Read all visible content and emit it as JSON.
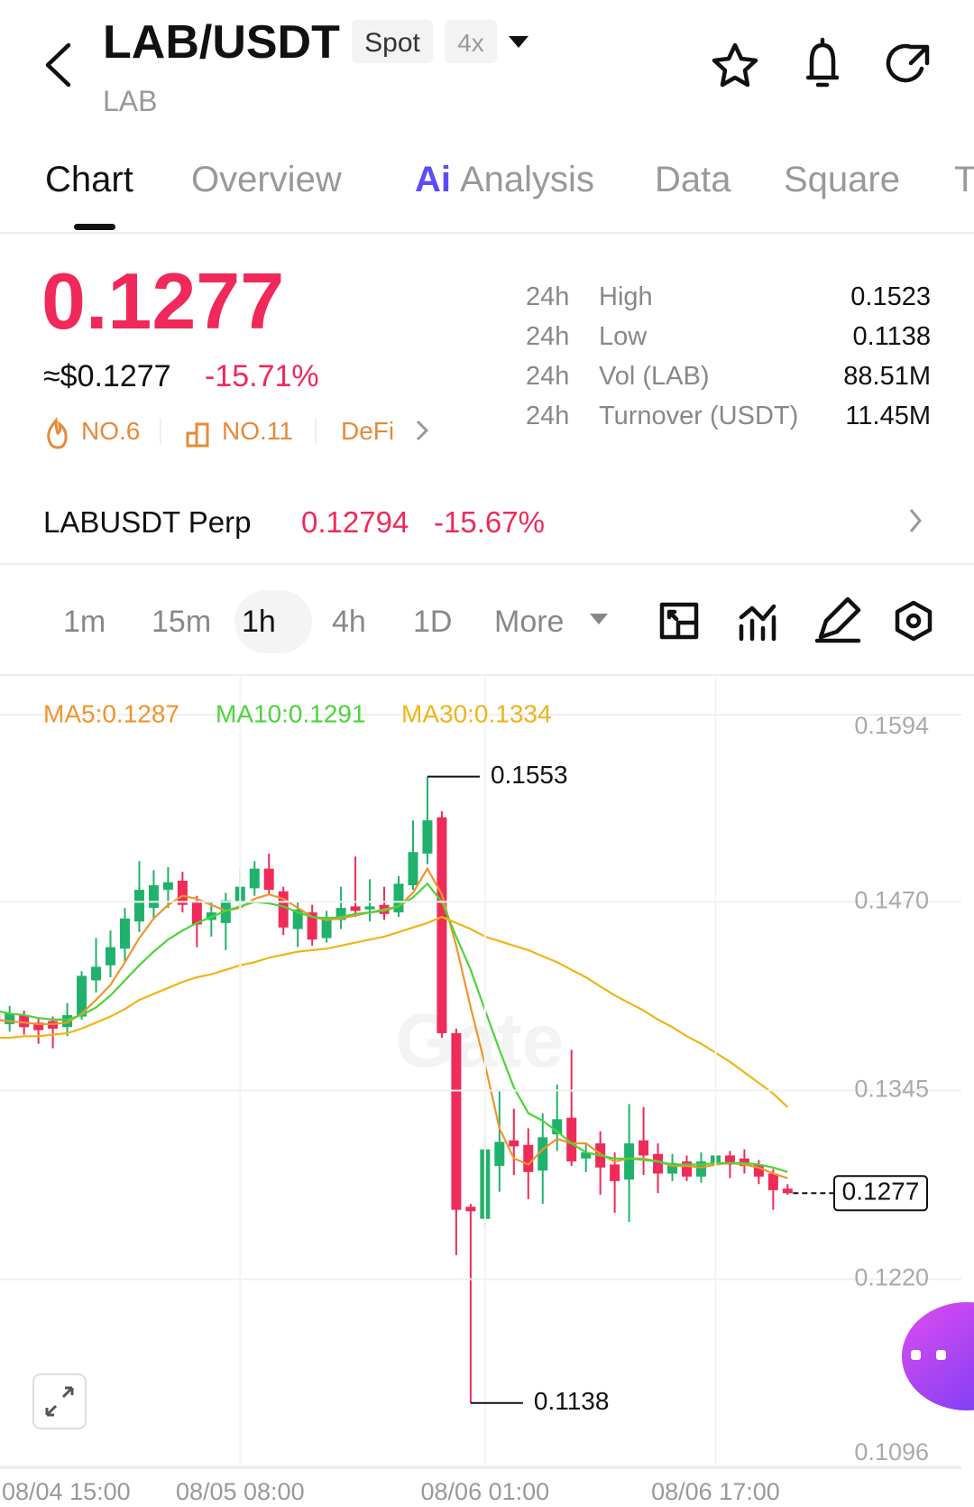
{
  "header": {
    "title": "LAB/USDT",
    "badges": [
      "Spot",
      "4x"
    ],
    "subtitle": "LAB"
  },
  "tabs": [
    "Chart",
    "Overview",
    "Analysis",
    "Data",
    "Square",
    "T"
  ],
  "ai_badge": "Ai",
  "price": {
    "last": "0.1277",
    "approx": "≈$0.1277",
    "change": "-15.71%",
    "tags": [
      "NO.6",
      "NO.11",
      "DeFi"
    ]
  },
  "stats": [
    [
      "24h",
      "High",
      "0.1523"
    ],
    [
      "24h",
      "Low",
      "0.1138"
    ],
    [
      "24h",
      "Vol (LAB)",
      "88.51M"
    ],
    [
      "24h",
      "Turnover (USDT)",
      "11.45M"
    ]
  ],
  "perp": {
    "name": "LABUSDT Perp",
    "price": "0.12794",
    "change": "-15.67%"
  },
  "intervals": [
    "1m",
    "15m",
    "1h",
    "4h",
    "1D",
    "More"
  ],
  "chart_data": {
    "type": "candlestick",
    "watermark": "Gate",
    "up_color": "#20b26c",
    "down_color": "#ef2b59",
    "grid": true,
    "categories": [
      "08/04 15:00",
      null,
      null,
      null,
      null,
      null,
      null,
      null,
      null,
      null,
      null,
      null,
      null,
      null,
      null,
      null,
      null,
      "08/05 08:00",
      null,
      null,
      null,
      null,
      null,
      null,
      null,
      null,
      null,
      null,
      null,
      null,
      null,
      null,
      null,
      null,
      "08/06 01:00",
      null,
      null,
      null,
      null,
      null,
      null,
      null,
      null,
      null,
      null,
      null,
      null,
      null,
      null,
      null,
      "08/06 17:00",
      null,
      null,
      null,
      null,
      null
    ],
    "open": [
      0.1398,
      0.1389,
      0.1395,
      0.139,
      0.1391,
      0.1387,
      0.1394,
      0.1418,
      0.1428,
      0.1439,
      0.1457,
      0.1466,
      0.1478,
      0.1484,
      0.147,
      0.1458,
      0.1456,
      0.147,
      0.1479,
      0.1492,
      0.1477,
      0.1452,
      0.1463,
      0.1446,
      0.1458,
      0.1467,
      0.1465,
      0.1468,
      0.1463,
      0.1481,
      0.1502,
      0.1526,
      0.1383,
      0.1268,
      0.126,
      0.1295,
      0.1312,
      0.1309,
      0.1292,
      0.1316,
      0.1327,
      0.13,
      0.131,
      0.1296,
      0.1286,
      0.1312,
      0.1303,
      0.129,
      0.1298,
      0.1288,
      0.1297,
      0.1302,
      0.13,
      0.1296,
      0.129,
      0.128
    ],
    "high": [
      0.1402,
      0.1401,
      0.1398,
      0.1393,
      0.1394,
      0.1403,
      0.1424,
      0.1446,
      0.1451,
      0.1466,
      0.1497,
      0.1491,
      0.1493,
      0.149,
      0.1474,
      0.147,
      0.1476,
      0.1491,
      0.1497,
      0.1502,
      0.148,
      0.147,
      0.1468,
      0.1464,
      0.148,
      0.15,
      0.1485,
      0.148,
      0.1487,
      0.1524,
      0.1553,
      0.153,
      0.1386,
      0.127,
      0.1315,
      0.1345,
      0.1333,
      0.132,
      0.133,
      0.1349,
      0.1372,
      0.131,
      0.1318,
      0.1304,
      0.1336,
      0.1334,
      0.131,
      0.1303,
      0.1302,
      0.1304,
      0.1312,
      0.1305,
      0.1306,
      0.1299,
      0.1293,
      0.1283
    ],
    "low": [
      0.1388,
      0.1384,
      0.1382,
      0.1376,
      0.1373,
      0.1381,
      0.1392,
      0.141,
      0.142,
      0.143,
      0.145,
      0.1458,
      0.1466,
      0.1463,
      0.144,
      0.1447,
      0.1438,
      0.1466,
      0.1474,
      0.1475,
      0.1448,
      0.144,
      0.1441,
      0.1443,
      0.1452,
      0.146,
      0.1457,
      0.1458,
      0.146,
      0.1478,
      0.1495,
      0.138,
      0.1236,
      0.1138,
      0.1254,
      0.1278,
      0.1289,
      0.1273,
      0.127,
      0.1305,
      0.1295,
      0.1291,
      0.1276,
      0.1264,
      0.1258,
      0.1289,
      0.1277,
      0.1285,
      0.1285,
      0.1284,
      0.129,
      0.1287,
      0.129,
      0.1283,
      0.1266,
      0.1276
    ],
    "close": [
      0.1392,
      0.1396,
      0.1387,
      0.1385,
      0.1386,
      0.1395,
      0.1421,
      0.1427,
      0.144,
      0.1459,
      0.1478,
      0.1481,
      0.1483,
      0.1468,
      0.1455,
      0.1463,
      0.1471,
      0.148,
      0.1492,
      0.1478,
      0.1453,
      0.1465,
      0.1445,
      0.146,
      0.1466,
      0.1464,
      0.1467,
      0.1462,
      0.1482,
      0.1503,
      0.1524,
      0.1383,
      0.1266,
      0.1265,
      0.1306,
      0.1311,
      0.1308,
      0.1291,
      0.1314,
      0.1326,
      0.1298,
      0.1304,
      0.1294,
      0.1285,
      0.131,
      0.1302,
      0.129,
      0.1297,
      0.1288,
      0.1298,
      0.1302,
      0.1296,
      0.1295,
      0.1288,
      0.1279,
      0.1277
    ],
    "series": [
      {
        "name": "MA5:0.1287",
        "color": "#f0952d",
        "values": [
          0.1392,
          0.1391,
          0.139,
          0.1389,
          0.1389,
          0.139,
          0.1396,
          0.1405,
          0.1415,
          0.143,
          0.1446,
          0.1459,
          0.1468,
          0.1474,
          0.1472,
          0.1468,
          0.1464,
          0.1466,
          0.1472,
          0.1475,
          0.1472,
          0.1466,
          0.146,
          0.1458,
          0.1459,
          0.1461,
          0.1463,
          0.1465,
          0.1467,
          0.1476,
          0.1492,
          0.1475,
          0.1441,
          0.14,
          0.1362,
          0.132,
          0.13,
          0.1296,
          0.1306,
          0.1313,
          0.131,
          0.131,
          0.1303,
          0.1298,
          0.13,
          0.13,
          0.1298,
          0.1295,
          0.1295,
          0.1294,
          0.1296,
          0.1297,
          0.1296,
          0.1294,
          0.129,
          0.1287
        ]
      },
      {
        "name": "MA10:0.1291",
        "color": "#4cd43a",
        "values": [
          0.1398,
          0.1396,
          0.1395,
          0.1393,
          0.1392,
          0.1392,
          0.1395,
          0.14,
          0.1408,
          0.1418,
          0.1428,
          0.1437,
          0.1445,
          0.1451,
          0.1456,
          0.146,
          0.1464,
          0.1467,
          0.147,
          0.1469,
          0.1467,
          0.1463,
          0.146,
          0.1459,
          0.146,
          0.1462,
          0.1463,
          0.1464,
          0.1467,
          0.1473,
          0.1482,
          0.147,
          0.1447,
          0.1425,
          0.1398,
          0.1372,
          0.1347,
          0.133,
          0.1325,
          0.1318,
          0.131,
          0.1304,
          0.1302,
          0.13,
          0.13,
          0.1299,
          0.1298,
          0.1296,
          0.1296,
          0.1296,
          0.1297,
          0.1297,
          0.1297,
          0.1296,
          0.1294,
          0.1291
        ]
      },
      {
        "name": "MA30:0.1334",
        "color": "#f0b418",
        "values": [
          0.138,
          0.138,
          0.1381,
          0.1381,
          0.1382,
          0.1383,
          0.1386,
          0.139,
          0.1394,
          0.1399,
          0.1405,
          0.1409,
          0.1413,
          0.1417,
          0.142,
          0.1422,
          0.1425,
          0.1428,
          0.143,
          0.1433,
          0.1435,
          0.1437,
          0.1438,
          0.1439,
          0.1441,
          0.1443,
          0.1445,
          0.1447,
          0.145,
          0.1453,
          0.1456,
          0.146,
          0.1456,
          0.1452,
          0.1447,
          0.1444,
          0.1441,
          0.1438,
          0.1434,
          0.143,
          0.1425,
          0.142,
          0.1414,
          0.1408,
          0.1403,
          0.1398,
          0.1392,
          0.1387,
          0.1381,
          0.1376,
          0.137,
          0.1364,
          0.1357,
          0.135,
          0.1343,
          0.1334
        ]
      }
    ],
    "ylim": [
      0.1096,
      0.1594
    ],
    "yticks": [
      0.1594,
      {
        "value": 0.147,
        "label": "0.1470"
      },
      0.1345,
      {
        "value": 0.122,
        "label": "0.1220"
      },
      0.1096
    ],
    "max_label": 0.1553,
    "min_label": 0.1138,
    "last_price": 0.1277
  }
}
